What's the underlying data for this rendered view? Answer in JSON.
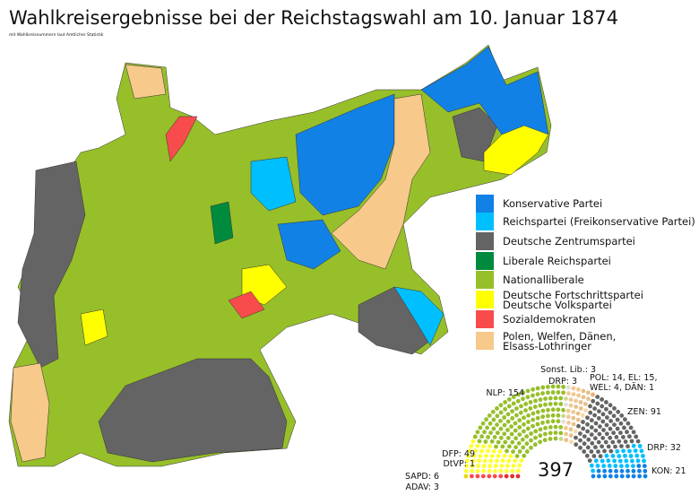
{
  "title": "Wahlkreisergebnisse bei der Reichstagswahl am 10. Januar 1874",
  "subtitle": "mit Wahlkreisnummern laut Amtlicher Statistik",
  "legend": [
    {
      "lines": [
        "Konservative Partei"
      ],
      "color": "#1181e6"
    },
    {
      "lines": [
        "Reichspartei (Freikonservative Partei)"
      ],
      "color": "#00bfff"
    },
    {
      "lines": [
        "Deutsche Zentrumspartei"
      ],
      "color": "#646464"
    },
    {
      "lines": [
        "Liberale Reichspartei"
      ],
      "color": "#008a3e"
    },
    {
      "lines": [
        "Nationalliberale"
      ],
      "color": "#97bf2a"
    },
    {
      "lines": [
        "Deutsche Fortschrittspartei",
        "Deutsche Volkspartei"
      ],
      "color": "#ffff00"
    },
    {
      "lines": [
        "Sozialdemokraten"
      ],
      "color": "#f84c4c"
    },
    {
      "lines": [
        "Polen, Welfen, Dänen,",
        "Elsass-Lothringer"
      ],
      "color": "#f7c98a"
    }
  ],
  "parliament": {
    "total": "397",
    "groups": [
      {
        "seats": 3,
        "color": "#e03030"
      },
      {
        "seats": 6,
        "color": "#f84c4c"
      },
      {
        "seats": 1,
        "color": "#e8d800"
      },
      {
        "seats": 49,
        "color": "#ffff30"
      },
      {
        "seats": 154,
        "color": "#97bf2a"
      },
      {
        "seats": 3,
        "color": "#c8d890"
      },
      {
        "seats": 3,
        "color": "#e0e0e0"
      },
      {
        "seats": 14,
        "color": "#f0c890"
      },
      {
        "seats": 15,
        "color": "#e8c088"
      },
      {
        "seats": 4,
        "color": "#f7d8a8"
      },
      {
        "seats": 1,
        "color": "#f0b070"
      },
      {
        "seats": 91,
        "color": "#646464"
      },
      {
        "seats": 32,
        "color": "#00bfff"
      },
      {
        "seats": 21,
        "color": "#1181e6"
      }
    ],
    "labels": [
      "ADAV: 3",
      "SAPD: 6",
      "DtVP: 1",
      "DFP: 49",
      "NLP: 154",
      "Sonst. Lib.: 3",
      "DRP: 3",
      "POL: 14, EL: 15,",
      "WEL: 4, DÄN: 1",
      "ZEN: 91",
      "DRP: 32",
      "KON: 21"
    ]
  }
}
